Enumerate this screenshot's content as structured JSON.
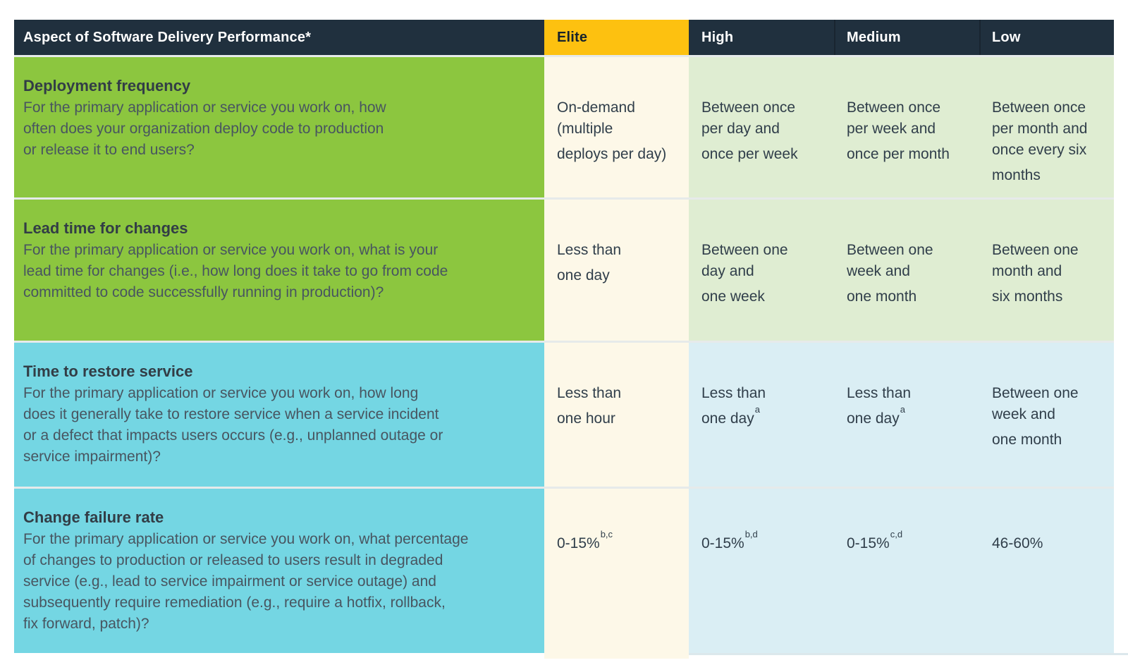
{
  "palette": {
    "header_navy": "#20303e",
    "elite_yellow": "#fdc110",
    "row_green": "#8cc63f",
    "row_cyan": "#74d6e3",
    "elite_column_cream": "#fdf8e8",
    "cell_light_green": "#dfedd2",
    "cell_light_blue": "#daeef4",
    "divider_gray": "#e6eaea",
    "title_text": "#323d46",
    "description_text": "#485560",
    "value_text": "#303e4a"
  },
  "header": {
    "aspect": "Aspect of Software Delivery Performance*",
    "levels": [
      "Elite",
      "High",
      "Medium",
      "Low"
    ]
  },
  "rows": [
    {
      "title": "Deployment frequency",
      "description": [
        "For the primary application or service you work on, how",
        "often does your organization deploy code to production",
        "or release it to end users?"
      ],
      "values": [
        {
          "lines": [
            "On-demand",
            "(multiple",
            "deploys per day)"
          ]
        },
        {
          "lines": [
            "Between once",
            "per day and",
            "once per week"
          ]
        },
        {
          "lines": [
            "Between once",
            "per week and",
            "once per month"
          ]
        },
        {
          "lines": [
            "Between once",
            "per month and",
            "once every six",
            "months"
          ]
        }
      ]
    },
    {
      "title": "Lead time for changes",
      "description": [
        "For the primary application or service you work on, what is your",
        "lead time for changes (i.e., how long does it take to go from code",
        "committed to code successfully running in production)?"
      ],
      "values": [
        {
          "lines": [
            "Less than",
            "one day"
          ]
        },
        {
          "lines": [
            "Between one",
            "day and",
            "one week"
          ]
        },
        {
          "lines": [
            "Between one",
            "week and",
            "one month"
          ]
        },
        {
          "lines": [
            "Between one",
            "month and",
            "six months"
          ]
        }
      ]
    },
    {
      "title": "Time to restore service",
      "description": [
        "For the primary application or service you work on, how long",
        "does it generally take to restore service when a service incident",
        "or a defect that impacts users occurs (e.g., unplanned outage or",
        "service impairment)?"
      ],
      "values": [
        {
          "lines": [
            "Less than",
            "one hour"
          ]
        },
        {
          "lines": [
            "Less than",
            "one day"
          ],
          "sup": "a"
        },
        {
          "lines": [
            "Less than",
            "one day"
          ],
          "sup": "a"
        },
        {
          "lines": [
            "Between one",
            "week and",
            "one month"
          ]
        }
      ]
    },
    {
      "title": "Change failure rate",
      "description": [
        "For the primary application or service you work on, what percentage",
        "of changes to production or released to users result in degraded",
        "service (e.g., lead to service impairment or service outage) and",
        "subsequently require remediation (e.g., require a hotfix, rollback,",
        "fix forward, patch)?"
      ],
      "values": [
        {
          "lines": [
            "0-15%"
          ],
          "sup": "b,c"
        },
        {
          "lines": [
            "0-15%"
          ],
          "sup": "b,d"
        },
        {
          "lines": [
            "0-15%"
          ],
          "sup": "c,d"
        },
        {
          "lines": [
            "46-60%"
          ]
        }
      ]
    }
  ]
}
